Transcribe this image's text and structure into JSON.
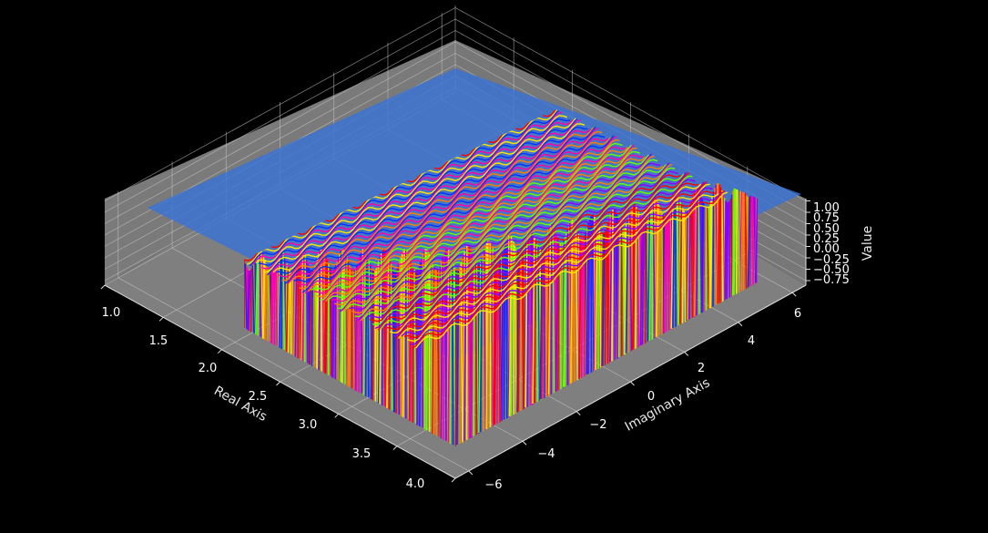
{
  "chart_data": {
    "type": "surface3d",
    "title": "",
    "xlabel": "Real Axis",
    "ylabel": "Imaginary Axis",
    "zlabel": "Value",
    "xlim": [
      1.0,
      4.0
    ],
    "ylim": [
      -6.5,
      6.5
    ],
    "zlim": [
      -0.85,
      1.05
    ],
    "x_ticks": [
      "1.0",
      "1.5",
      "2.0",
      "2.5",
      "3.0",
      "3.5",
      "4.0"
    ],
    "x_tick_values": [
      1.0,
      1.5,
      2.0,
      2.5,
      3.0,
      3.5,
      4.0
    ],
    "y_ticks": [
      "−6",
      "−4",
      "−2",
      "0",
      "2",
      "4",
      "6"
    ],
    "y_tick_values": [
      -6,
      -4,
      -2,
      0,
      2,
      4,
      6
    ],
    "z_ticks": [
      "−0.75",
      "−0.50",
      "−0.25",
      "0.00",
      "0.25",
      "0.50",
      "0.75",
      "1.00"
    ],
    "z_tick_values": [
      -0.75,
      -0.5,
      -0.25,
      0.0,
      0.25,
      0.5,
      0.75,
      1.0
    ],
    "colormap": "prism",
    "plane": {
      "value": 1.0,
      "color": "#3a73d6"
    },
    "grid": true
  },
  "colors": {
    "background": "#000000",
    "pane": "#7f7f7f",
    "grid": "#c8c8c8",
    "text": "#ffffff"
  }
}
